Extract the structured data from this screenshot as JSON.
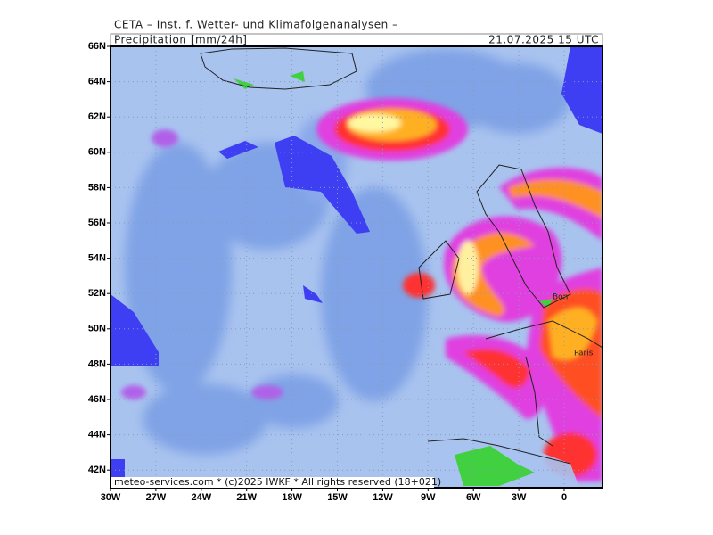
{
  "header": {
    "title": "CETA – Inst. f. Wetter- und Klimafolgenanalysen –",
    "field": "Precipitation [mm/24h]",
    "valid_time": "21.07.2025 15 UTC"
  },
  "map": {
    "lat_labels": [
      "66N",
      "64N",
      "62N",
      "60N",
      "58N",
      "56N",
      "54N",
      "52N",
      "50N",
      "48N",
      "46N",
      "44N",
      "42N"
    ],
    "lon_labels": [
      "30W",
      "27W",
      "24W",
      "21W",
      "18W",
      "15W",
      "12W",
      "9W",
      "6W",
      "3W",
      "0"
    ],
    "place_labels": [
      "Bon",
      "Paris"
    ]
  },
  "footer": "meteo-services.com * (c)2025 IWKF * All rights reserved (18+021)"
}
